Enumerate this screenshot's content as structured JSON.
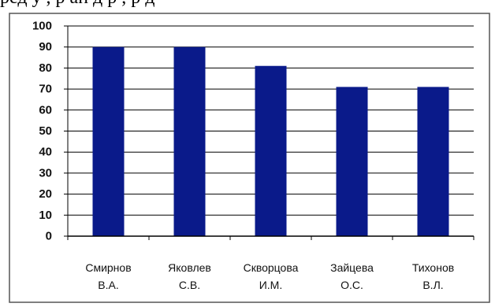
{
  "top_text": "ред у , р ан д р , р д",
  "chart_data": {
    "type": "bar",
    "categories": [
      [
        "Смирнов",
        "В.А."
      ],
      [
        "Яковлев",
        "С.В."
      ],
      [
        "Скворцова",
        "И.М."
      ],
      [
        "Зайцева",
        "О.С."
      ],
      [
        "Тихонов",
        "В.Л."
      ]
    ],
    "values": [
      90,
      90,
      81,
      71,
      71
    ],
    "ylim": [
      0,
      100
    ],
    "yticks": [
      0,
      10,
      20,
      30,
      40,
      50,
      60,
      70,
      80,
      90,
      100
    ],
    "grid": true,
    "legend": "none",
    "colors": {
      "bar": "#0a1a8a",
      "grid": "#000000",
      "frame": "#555555",
      "axis": "#000000"
    }
  }
}
